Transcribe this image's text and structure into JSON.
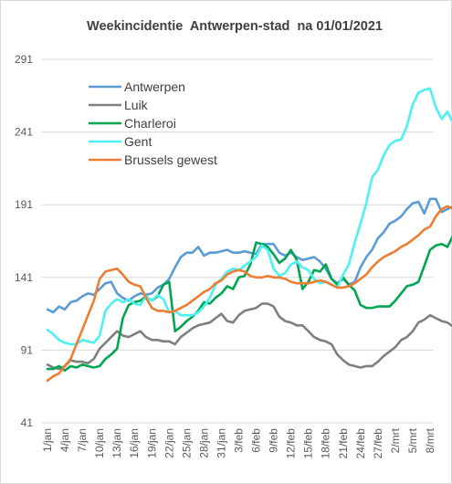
{
  "chart_data": {
    "type": "line",
    "title": "Weekincidentie  Antwerpen-stad  na 01/01/2021",
    "xlabel": "",
    "ylabel": "",
    "ylim": [
      41,
      291
    ],
    "yticks": [
      41,
      91,
      141,
      191,
      241,
      291
    ],
    "grid": "horizontal",
    "legend_position": "top-left",
    "x_start": "1/jan",
    "x_step_days": 1,
    "x_tick_labels": [
      "1/jan",
      "4/jan",
      "7/jan",
      "10/jan",
      "13/jan",
      "16/jan",
      "19/jan",
      "22/jan",
      "25/jan",
      "28/jan",
      "31/jan",
      "3/feb",
      "6/feb",
      "9/feb",
      "12/feb",
      "15/feb",
      "18/feb",
      "21/feb",
      "24/feb",
      "27/feb",
      "2/mrt",
      "5/mrt",
      "8/mrt"
    ],
    "series": [
      {
        "name": "Antwerpen",
        "color": "#5B9BD5",
        "values": [
          119,
          117,
          121,
          119,
          124,
          125,
          128,
          130,
          129,
          133,
          137,
          138,
          130,
          127,
          125,
          128,
          130,
          129,
          130,
          134,
          136,
          140,
          148,
          155,
          158,
          158,
          162,
          156,
          158,
          158,
          159,
          160,
          158,
          158,
          159,
          158,
          157,
          164,
          164,
          164,
          158,
          156,
          158,
          155,
          153,
          154,
          155,
          152,
          147,
          140,
          137,
          140,
          136,
          138,
          148,
          155,
          160,
          168,
          172,
          178,
          180,
          183,
          188,
          192,
          193,
          185,
          195,
          195,
          186,
          188,
          190,
          180,
          178,
          180,
          178,
          176,
          177,
          184
        ]
      },
      {
        "name": "Luik",
        "color": "#7F7F7F",
        "values": [
          81,
          79,
          78,
          80,
          84,
          83,
          83,
          82,
          85,
          92,
          96,
          100,
          104,
          101,
          100,
          102,
          104,
          100,
          98,
          98,
          97,
          97,
          95,
          100,
          103,
          106,
          108,
          109,
          110,
          113,
          116,
          111,
          110,
          115,
          118,
          119,
          120,
          123,
          123,
          121,
          114,
          111,
          110,
          108,
          108,
          104,
          100,
          98,
          97,
          95,
          88,
          84,
          81,
          80,
          79,
          80,
          80,
          83,
          87,
          90,
          93,
          98,
          100,
          104,
          110,
          112,
          115,
          113,
          111,
          110,
          107,
          104,
          100,
          97,
          94,
          91,
          87,
          86,
          84
        ]
      },
      {
        "name": "Charleroi",
        "color": "#00A651",
        "values": [
          78,
          78,
          80,
          77,
          80,
          79,
          81,
          80,
          79,
          80,
          85,
          88,
          92,
          113,
          122,
          124,
          125,
          128,
          125,
          128,
          136,
          138,
          104,
          107,
          111,
          114,
          118,
          124,
          123,
          127,
          130,
          135,
          133,
          141,
          142,
          150,
          165,
          164,
          162,
          157,
          151,
          154,
          160,
          153,
          133,
          138,
          146,
          145,
          150,
          140,
          136,
          141,
          136,
          132,
          122,
          120,
          120,
          121,
          121,
          121,
          125,
          130,
          135,
          136,
          138,
          149,
          160,
          163,
          164,
          162,
          170,
          173,
          174,
          178,
          150,
          154,
          157,
          169
        ]
      },
      {
        "name": "Gent",
        "color": "#4DF1F2",
        "values": [
          105,
          102,
          98,
          96,
          95,
          95,
          98,
          97,
          96,
          101,
          118,
          123,
          126,
          124,
          126,
          123,
          122,
          128,
          125,
          129,
          126,
          117,
          118,
          115,
          115,
          115,
          117,
          121,
          127,
          136,
          140,
          145,
          147,
          146,
          149,
          152,
          155,
          163,
          160,
          147,
          142,
          144,
          150,
          152,
          148,
          146,
          140,
          137,
          138,
          136,
          134,
          143,
          150,
          165,
          178,
          192,
          210,
          215,
          225,
          232,
          235,
          236,
          245,
          260,
          268,
          270,
          271,
          258,
          250,
          255,
          247,
          238,
          226,
          220,
          216,
          228,
          232,
          238,
          248
        ]
      },
      {
        "name": "Brussels gewest",
        "color": "#ED7D31",
        "values": [
          70,
          73,
          75,
          80,
          85,
          95,
          105,
          115,
          125,
          140,
          145,
          146,
          147,
          143,
          138,
          136,
          135,
          127,
          120,
          118,
          118,
          117,
          118,
          120,
          122,
          125,
          128,
          131,
          133,
          137,
          139,
          143,
          145,
          146,
          145,
          142,
          141,
          141,
          142,
          141,
          141,
          140,
          138,
          137,
          137,
          137,
          138,
          139,
          138,
          136,
          134,
          134,
          135,
          137,
          140,
          143,
          148,
          152,
          155,
          157,
          159,
          162,
          164,
          167,
          170,
          174,
          176,
          183,
          188,
          190,
          188,
          191,
          192,
          193,
          192,
          188,
          184,
          186
        ]
      }
    ]
  }
}
